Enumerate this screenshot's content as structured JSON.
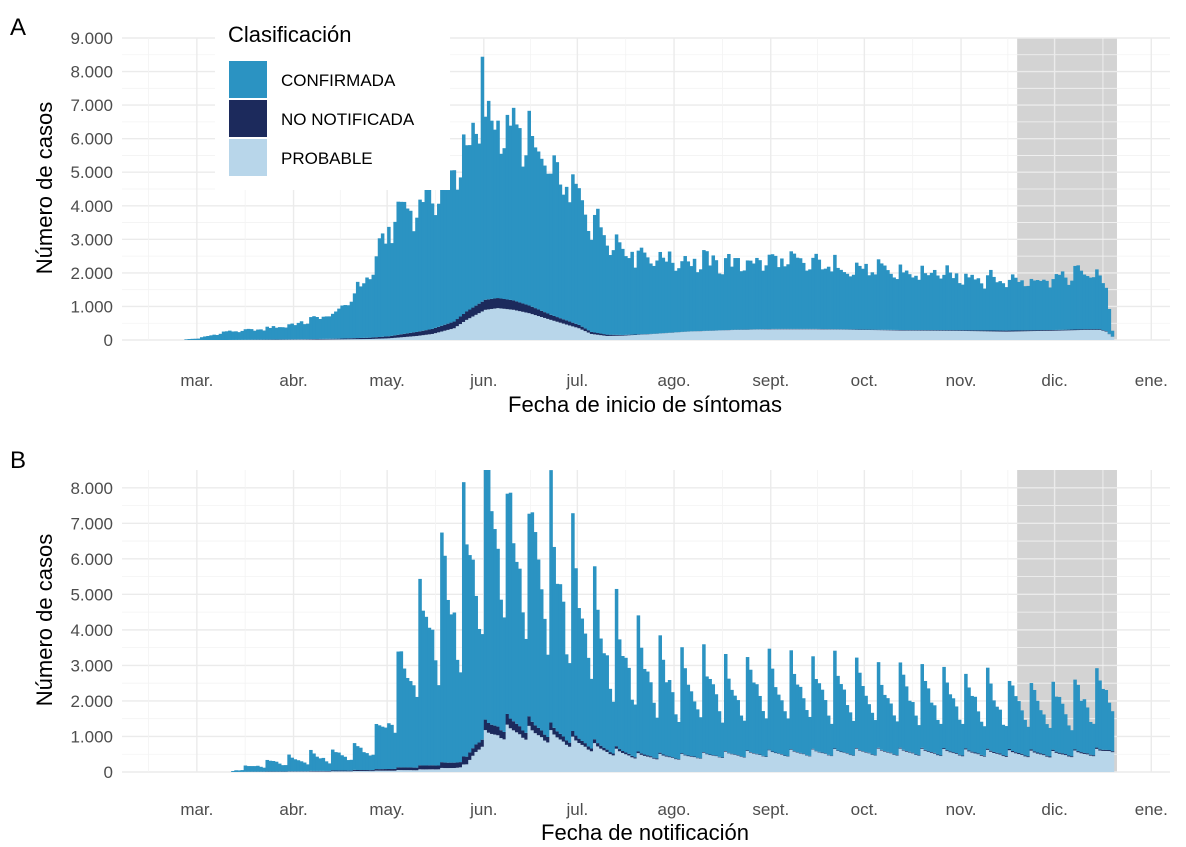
{
  "colors": {
    "confirmada": "#2b93c2",
    "no_notificada": "#1c2a5c",
    "probable": "#b8d6ea",
    "shade": "#d3d3d3",
    "grid": "#ebebeb"
  },
  "legend": {
    "title": "Clasificación",
    "items": [
      "CONFIRMADA",
      "NO NOTIFICADA",
      "PROBABLE"
    ],
    "placement": "top-left"
  },
  "chart_data": [
    {
      "type": "bar",
      "stacked": true,
      "panel_label": "A",
      "xlabel": "Fecha de inicio de síntomas",
      "ylabel": "Número de casos",
      "xlim": [
        "2020-02-06",
        "2021-01-07"
      ],
      "ylim": [
        0,
        9000
      ],
      "y_ticks": [
        0,
        1000,
        2000,
        3000,
        4000,
        5000,
        6000,
        7000,
        8000,
        9000
      ],
      "y_tick_labels": [
        "0",
        "1.000",
        "2.000",
        "3.000",
        "4.000",
        "5.000",
        "6.000",
        "7.000",
        "8.000",
        "9.000"
      ],
      "x_ticks": [
        "2020-03-01",
        "2020-04-01",
        "2020-05-01",
        "2020-06-01",
        "2020-07-01",
        "2020-08-01",
        "2020-09-01",
        "2020-10-01",
        "2020-11-01",
        "2020-12-01",
        "2021-01-01"
      ],
      "x_tick_labels": [
        "mar.",
        "abr.",
        "may.",
        "jun.",
        "jul.",
        "ago.",
        "sept.",
        "oct.",
        "nov.",
        "dic.",
        "ene."
      ],
      "shaded_period": [
        "2020-11-19",
        "2020-12-20"
      ],
      "grid": true,
      "series_order": [
        "PROBABLE",
        "NO NOTIFICADA",
        "CONFIRMADA"
      ],
      "weekly_pattern": false,
      "anchors": {
        "dates": [
          "2020-02-26",
          "2020-03-01",
          "2020-03-10",
          "2020-03-20",
          "2020-04-01",
          "2020-04-15",
          "2020-04-25",
          "2020-05-01",
          "2020-05-05",
          "2020-05-10",
          "2020-05-15",
          "2020-05-22",
          "2020-05-26",
          "2020-06-01",
          "2020-06-05",
          "2020-06-10",
          "2020-06-15",
          "2020-06-22",
          "2020-07-01",
          "2020-07-05",
          "2020-07-10",
          "2020-07-15",
          "2020-07-25",
          "2020-08-05",
          "2020-08-20",
          "2020-09-01",
          "2020-09-15",
          "2020-10-01",
          "2020-10-15",
          "2020-11-01",
          "2020-11-15",
          "2020-12-01",
          "2020-12-10",
          "2020-12-15",
          "2020-12-17",
          "2020-12-19"
        ],
        "CONFIRMADA": [
          20,
          50,
          250,
          300,
          450,
          800,
          1900,
          3200,
          3800,
          3700,
          4000,
          4500,
          5000,
          5200,
          5300,
          5200,
          4800,
          4300,
          3800,
          3400,
          3000,
          2600,
          2300,
          2100,
          2000,
          2050,
          1950,
          1800,
          1700,
          1650,
          1500,
          1550,
          1700,
          1600,
          1300,
          200
        ],
        "NO NOTIFICADA": [
          0,
          0,
          0,
          5,
          10,
          20,
          40,
          60,
          90,
          120,
          150,
          200,
          250,
          300,
          300,
          280,
          230,
          150,
          100,
          60,
          40,
          20,
          5,
          5,
          5,
          10,
          10,
          10,
          15,
          20,
          30,
          20,
          20,
          20,
          15,
          5
        ],
        "PROBABLE": [
          0,
          0,
          0,
          5,
          10,
          20,
          30,
          50,
          80,
          120,
          180,
          350,
          600,
          900,
          950,
          900,
          800,
          600,
          350,
          180,
          120,
          130,
          180,
          250,
          300,
          320,
          320,
          300,
          280,
          270,
          250,
          280,
          300,
          300,
          250,
          100
        ]
      },
      "peaks": {
        "dates": [
          "2020-05-31",
          "2020-06-08",
          "2020-06-15"
        ],
        "CONFIRMADA": [
          7300,
          5500,
          5800
        ]
      }
    },
    {
      "type": "bar",
      "stacked": true,
      "panel_label": "B",
      "xlabel": "Fecha de notificación",
      "ylabel": "Número de casos",
      "xlim": [
        "2020-02-06",
        "2021-01-07"
      ],
      "ylim": [
        0,
        8500
      ],
      "y_ticks": [
        0,
        1000,
        2000,
        3000,
        4000,
        5000,
        6000,
        7000,
        8000
      ],
      "y_tick_labels": [
        "0",
        "1.000",
        "2.000",
        "3.000",
        "4.000",
        "5.000",
        "6.000",
        "7.000",
        "8.000"
      ],
      "x_ticks": [
        "2020-03-01",
        "2020-04-01",
        "2020-05-01",
        "2020-06-01",
        "2020-07-01",
        "2020-08-01",
        "2020-09-01",
        "2020-10-01",
        "2020-11-01",
        "2020-12-01",
        "2021-01-01"
      ],
      "x_tick_labels": [
        "mar.",
        "abr.",
        "may.",
        "jun.",
        "jul.",
        "ago.",
        "sept.",
        "oct.",
        "nov.",
        "dic.",
        "ene."
      ],
      "shaded_period": [
        "2020-11-19",
        "2020-12-20"
      ],
      "grid": true,
      "series_order": [
        "PROBABLE",
        "NO NOTIFICADA",
        "CONFIRMADA"
      ],
      "weekly_pattern": true,
      "anchors": {
        "dates": [
          "2020-03-12",
          "2020-03-20",
          "2020-04-01",
          "2020-04-15",
          "2020-04-25",
          "2020-05-01",
          "2020-05-05",
          "2020-05-10",
          "2020-05-15",
          "2020-05-22",
          "2020-05-26",
          "2020-06-01",
          "2020-06-05",
          "2020-06-10",
          "2020-06-15",
          "2020-06-22",
          "2020-07-01",
          "2020-07-10",
          "2020-07-20",
          "2020-08-01",
          "2020-08-15",
          "2020-09-01",
          "2020-09-15",
          "2020-10-01",
          "2020-10-15",
          "2020-11-01",
          "2020-11-15",
          "2020-12-01",
          "2020-12-10",
          "2020-12-15",
          "2020-12-19"
        ],
        "CONFIRMADA": [
          30,
          200,
          350,
          450,
          600,
          1500,
          2500,
          3500,
          4200,
          4600,
          5000,
          5600,
          5800,
          5300,
          5000,
          4500,
          3800,
          3000,
          2500,
          2000,
          1900,
          1900,
          1800,
          1700,
          1600,
          1550,
          1450,
          1400,
          1450,
          1600,
          1700
        ],
        "NO NOTIFICADA": [
          0,
          5,
          10,
          20,
          30,
          50,
          70,
          90,
          120,
          160,
          200,
          250,
          260,
          250,
          230,
          180,
          120,
          70,
          40,
          20,
          15,
          15,
          15,
          15,
          20,
          25,
          30,
          30,
          30,
          30,
          30
        ],
        "PROBABLE": [
          0,
          5,
          10,
          20,
          30,
          40,
          50,
          60,
          80,
          120,
          200,
          1000,
          1100,
          1150,
          1100,
          1000,
          800,
          600,
          450,
          420,
          480,
          520,
          540,
          560,
          560,
          540,
          520,
          500,
          520,
          560,
          650
        ]
      },
      "peaks": {
        "dates": [
          "2020-06-01",
          "2020-06-08",
          "2020-06-15"
        ],
        "CONFIRMADA": [
          7100,
          6200,
          5700
        ]
      }
    }
  ]
}
